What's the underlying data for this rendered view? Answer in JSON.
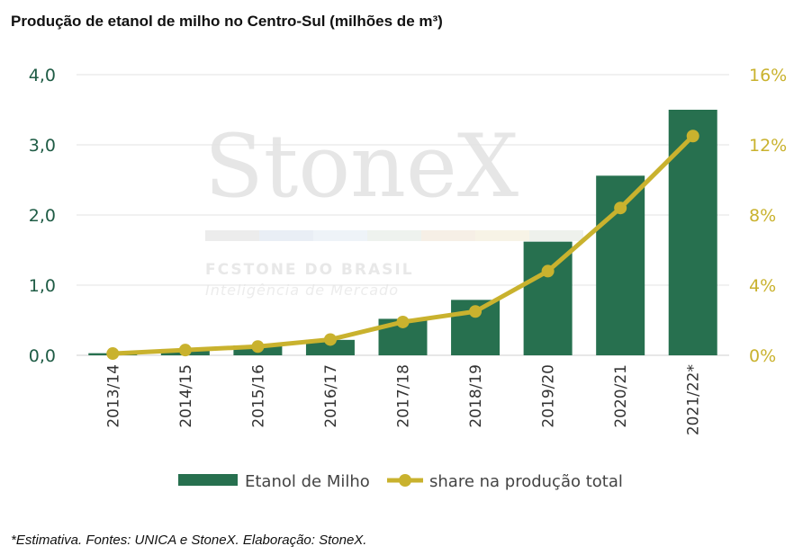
{
  "header": {
    "title": "Produção de etanol de milho no Centro-Sul (milhões de m³)"
  },
  "footer": {
    "note": "*Estimativa. Fontes: UNICA e StoneX. Elaboração: StoneX."
  },
  "watermark": {
    "brand": "StoneX",
    "line1": "FCSTONE DO BRASIL",
    "line2": "Inteligência de Mercado"
  },
  "chart_data": {
    "type": "bar",
    "categories": [
      "2013/14",
      "2014/15",
      "2015/16",
      "2016/17",
      "2017/18",
      "2018/19",
      "2019/20",
      "2020/21",
      "2021/22*"
    ],
    "series": [
      {
        "name": "Etanol de Milho",
        "type": "bar",
        "axis": "left",
        "color": "#27704f",
        "values": [
          0.03,
          0.09,
          0.14,
          0.22,
          0.52,
          0.79,
          1.62,
          2.56,
          3.5
        ]
      },
      {
        "name": "share na produção total",
        "type": "line",
        "axis": "right",
        "color": "#c9b22e",
        "values": [
          0.1,
          0.3,
          0.5,
          0.9,
          1.9,
          2.5,
          4.8,
          8.4,
          12.5
        ]
      }
    ],
    "y_left": {
      "min": 0,
      "max": 4,
      "ticks": [
        "0,0",
        "1,0",
        "2,0",
        "3,0",
        "4,0"
      ]
    },
    "y_right": {
      "min": 0,
      "max": 16,
      "ticks": [
        "0%",
        "4%",
        "8%",
        "12%",
        "16%"
      ]
    },
    "grid": true,
    "legend_position": "bottom"
  }
}
